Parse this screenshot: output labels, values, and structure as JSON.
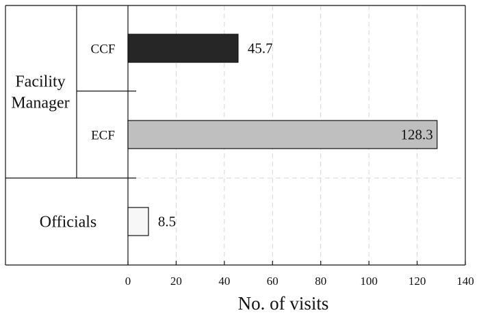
{
  "chart_data": {
    "type": "bar",
    "orientation": "horizontal",
    "xlabel": "No. of visits",
    "xlim": [
      0,
      140
    ],
    "xticks": [
      0,
      20,
      40,
      60,
      80,
      100,
      120,
      140
    ],
    "grid": true,
    "groups": [
      {
        "label_lines": [
          "Facility",
          "Manager"
        ],
        "subcategories": [
          {
            "label": "CCF",
            "value": 45.7,
            "value_label": "45.7",
            "color": "#262626"
          },
          {
            "label": "ECF",
            "value": 128.3,
            "value_label": "128.3",
            "color": "#bfbfbf"
          }
        ]
      },
      {
        "label_lines": [
          "Officials"
        ],
        "subcategories": [
          {
            "label": "",
            "value": 8.5,
            "value_label": "8.5",
            "color": "#f7f7f7"
          }
        ]
      }
    ]
  }
}
